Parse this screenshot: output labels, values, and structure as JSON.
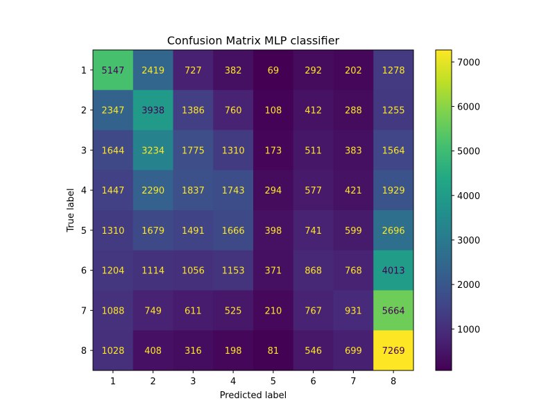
{
  "chart_data": {
    "type": "heatmap",
    "title": "Confusion Matrix MLP classifier",
    "xlabel": "Predicted label",
    "ylabel": "True label",
    "x_categories": [
      "1",
      "2",
      "3",
      "4",
      "5",
      "6",
      "7",
      "8"
    ],
    "y_categories": [
      "1",
      "2",
      "3",
      "4",
      "5",
      "6",
      "7",
      "8"
    ],
    "values": [
      [
        5147,
        2419,
        727,
        382,
        69,
        292,
        202,
        1278
      ],
      [
        2347,
        3938,
        1386,
        760,
        108,
        412,
        288,
        1255
      ],
      [
        1644,
        3234,
        1775,
        1310,
        173,
        511,
        383,
        1564
      ],
      [
        1447,
        2290,
        1837,
        1743,
        294,
        577,
        421,
        1929
      ],
      [
        1310,
        1679,
        1491,
        1666,
        398,
        741,
        599,
        2696
      ],
      [
        1204,
        1114,
        1056,
        1153,
        371,
        868,
        768,
        4013
      ],
      [
        1088,
        749,
        611,
        525,
        210,
        767,
        931,
        5664
      ],
      [
        1028,
        408,
        316,
        198,
        81,
        546,
        699,
        7269
      ]
    ],
    "colormap": "viridis",
    "colorbar": {
      "range": [
        69,
        7269
      ],
      "ticks": [
        1000,
        2000,
        3000,
        4000,
        5000,
        6000,
        7000
      ],
      "tick_labels": [
        "1000",
        "2000",
        "3000",
        "4000",
        "5000",
        "6000",
        "7000"
      ]
    },
    "text_colors": {
      "on_dark": "#fde725",
      "on_light": "#440154"
    },
    "grid": false
  }
}
